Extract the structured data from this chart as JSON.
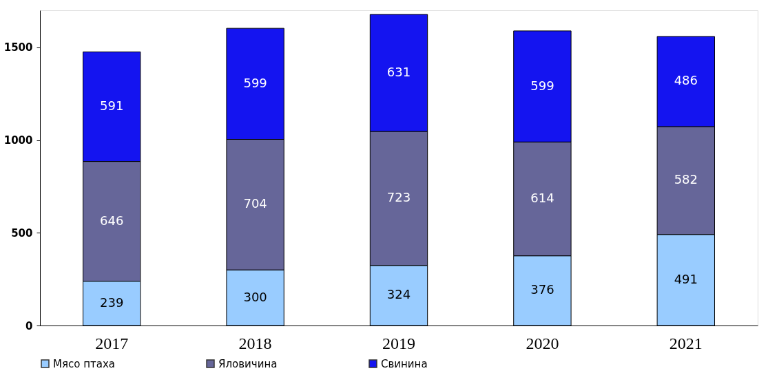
{
  "chart_data": {
    "type": "bar",
    "stacked": true,
    "categories": [
      "2017",
      "2018",
      "2019",
      "2020",
      "2021"
    ],
    "series": [
      {
        "name": "Мясо птаха",
        "color": "#99ccff",
        "values": [
          239,
          300,
          324,
          376,
          491
        ]
      },
      {
        "name": "Яловичина",
        "color": "#666699",
        "values": [
          646,
          704,
          723,
          614,
          582
        ]
      },
      {
        "name": "Свинина",
        "color": "#1414f0",
        "values": [
          591,
          599,
          631,
          599,
          486
        ]
      }
    ],
    "ylim": [
      0,
      1700
    ],
    "yticks": [
      0,
      500,
      1000,
      1500
    ],
    "grid": false,
    "legend": "bottom",
    "data_labels": true
  }
}
